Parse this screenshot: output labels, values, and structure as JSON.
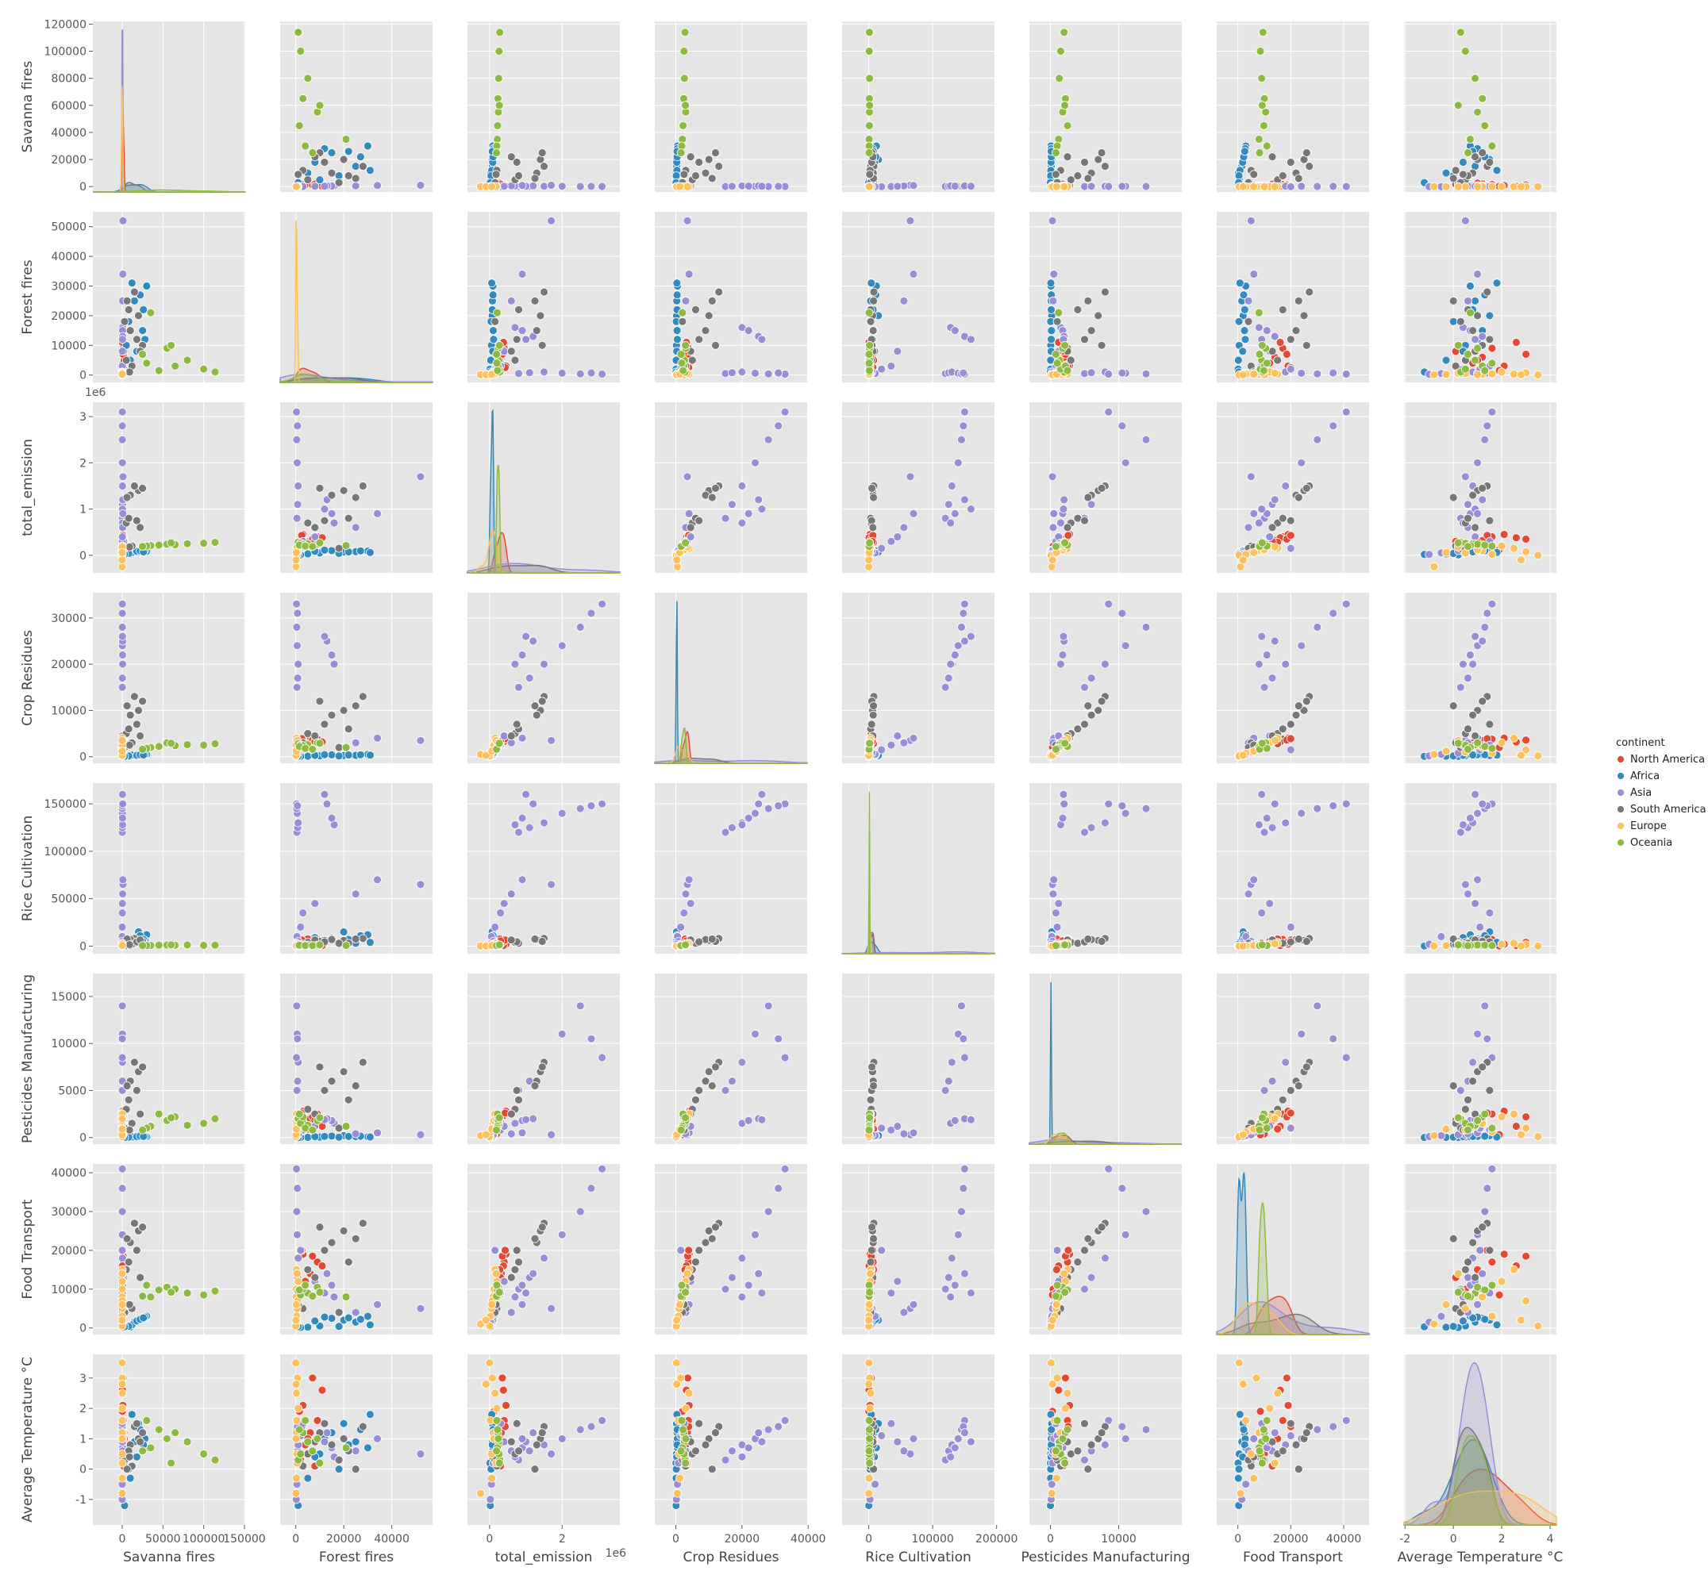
{
  "chart_data": {
    "type": "pairplot",
    "grid": true,
    "legend_title": "continent",
    "legend_loc": "right",
    "variables": [
      {
        "label": "Savanna fires",
        "xlim": [
          -36000,
          151000
        ],
        "xticks": [
          0,
          50000,
          100000,
          150000
        ],
        "ylim": [
          -4000,
          122000
        ],
        "yticks": [
          0,
          20000,
          40000,
          60000,
          80000,
          100000,
          120000
        ]
      },
      {
        "label": "Forest fires",
        "xlim": [
          -6500,
          57000
        ],
        "xticks": [
          0,
          20000,
          40000
        ],
        "ylim": [
          -2500,
          55000
        ],
        "yticks": [
          0,
          10000,
          20000,
          30000,
          40000,
          50000
        ]
      },
      {
        "label": "total_emission",
        "offset_text": "1e6",
        "xlim": [
          -610000,
          3590000
        ],
        "xticks": [
          0,
          {
            "value": 2000000,
            "label": "2"
          }
        ],
        "ylim": [
          -380000,
          3310000
        ],
        "yticks": [
          0,
          {
            "value": 1000000,
            "label": "1"
          },
          {
            "value": 2000000,
            "label": "2"
          },
          {
            "value": 3000000,
            "label": "3"
          }
        ]
      },
      {
        "label": "Crop Residues",
        "xlim": [
          -6350,
          39700
        ],
        "xticks": [
          0,
          20000,
          40000
        ],
        "ylim": [
          -1420,
          35460
        ],
        "yticks": [
          0,
          10000,
          20000,
          30000
        ]
      },
      {
        "label": "Rice Cultivation",
        "xlim": [
          -41700,
          196700
        ],
        "xticks": [
          0,
          100000,
          200000
        ],
        "ylim": [
          -8000,
          171900
        ],
        "yticks": [
          0,
          50000,
          100000,
          150000
        ]
      },
      {
        "label": "Pesticides Manufacturing",
        "xlim": [
          -3080,
          19230
        ],
        "xticks": [
          0,
          10000
        ],
        "ylim": [
          -700,
          17440
        ],
        "yticks": [
          0,
          5000,
          10000,
          15000
        ]
      },
      {
        "label": "Food Transport",
        "xlim": [
          -8000,
          49600
        ],
        "xticks": [
          0,
          20000,
          40000
        ],
        "ylim": [
          -1700,
          42270
        ],
        "yticks": [
          0,
          10000,
          20000,
          30000,
          40000
        ]
      },
      {
        "label": "Average Temperature °C",
        "xlim": [
          -2.04,
          4.26
        ],
        "xticks": [
          -2,
          0,
          2,
          4
        ],
        "ylim": [
          -1.84,
          3.78
        ],
        "yticks": [
          -1,
          0,
          1,
          2,
          3
        ]
      }
    ],
    "series": [
      {
        "name": "North America",
        "color": "#e24a33",
        "points": [
          [
            500,
            2000,
            150000,
            2500,
            3000,
            800,
            9000,
            0.3
          ],
          [
            1000,
            4000,
            250000,
            3000,
            5000,
            1500,
            12000,
            0.8
          ],
          [
            2000,
            6000,
            320000,
            3500,
            6000,
            2000,
            14000,
            1.2
          ],
          [
            1500,
            9000,
            400000,
            3800,
            7000,
            2500,
            17000,
            1.6
          ],
          [
            800,
            3000,
            450000,
            4000,
            2000,
            2800,
            19000,
            2.1
          ],
          [
            300,
            11000,
            380000,
            3200,
            500,
            1200,
            16000,
            2.6
          ],
          [
            2500,
            5000,
            280000,
            2800,
            7500,
            900,
            15000,
            1.0
          ],
          [
            100,
            1000,
            200000,
            2200,
            1000,
            400,
            10000,
            0.5
          ],
          [
            1200,
            7000,
            350000,
            3600,
            4000,
            2200,
            18500,
            3.0
          ],
          [
            600,
            2500,
            430000,
            3900,
            6500,
            2600,
            20000,
            1.4
          ],
          [
            200,
            1500,
            120000,
            2000,
            200,
            300,
            8500,
            1.9
          ],
          [
            1800,
            8000,
            300000,
            3300,
            5500,
            1800,
            13000,
            0.1
          ]
        ]
      },
      {
        "name": "Africa",
        "color": "#348abd",
        "points": [
          [
            5000,
            10000,
            50000,
            200,
            1000,
            50,
            500,
            0.5
          ],
          [
            15000,
            25000,
            80000,
            300,
            3000,
            100,
            1500,
            0.9
          ],
          [
            25000,
            15000,
            100000,
            400,
            8000,
            150,
            2500,
            1.2
          ],
          [
            30000,
            30000,
            90000,
            500,
            12000,
            80,
            3000,
            0.7
          ],
          [
            10000,
            5000,
            30000,
            100,
            500,
            20,
            200,
            -0.3
          ],
          [
            20000,
            20000,
            70000,
            250,
            15000,
            200,
            2000,
            1.5
          ],
          [
            2000,
            2000,
            10000,
            50,
            200,
            10,
            100,
            0.2
          ],
          [
            12000,
            31000,
            60000,
            350,
            4000,
            60,
            800,
            1.8
          ],
          [
            28000,
            12000,
            110000,
            450,
            6000,
            120,
            2800,
            1.0
          ],
          [
            8000,
            18000,
            40000,
            150,
            2000,
            30,
            400,
            0.0
          ],
          [
            18000,
            8000,
            85000,
            300,
            9000,
            90,
            1800,
            0.4
          ],
          [
            22000,
            27000,
            95000,
            420,
            11000,
            140,
            2200,
            1.3
          ],
          [
            3000,
            1000,
            20000,
            80,
            100,
            5,
            300,
            -1.2
          ],
          [
            26000,
            22000,
            75000,
            380,
            7000,
            110,
            2600,
            0.8
          ]
        ]
      },
      {
        "name": "Asia",
        "color": "#988ed5",
        "points": [
          [
            100,
            500,
            800000,
            15000,
            120000,
            5000,
            10000,
            0.3
          ],
          [
            200,
            800,
            1100000,
            17000,
            125000,
            6000,
            13000,
            0.6
          ],
          [
            300,
            1000,
            1500000,
            20000,
            130000,
            8000,
            18000,
            0.8
          ],
          [
            200,
            600,
            2000000,
            24000,
            140000,
            11000,
            24000,
            1.0
          ],
          [
            100,
            400,
            2500000,
            28000,
            145000,
            14000,
            30000,
            1.3
          ],
          [
            100,
            300,
            3100000,
            33000,
            150000,
            8500,
            41000,
            1.6
          ],
          [
            150,
            700,
            2800000,
            31000,
            148000,
            10500,
            36000,
            1.4
          ],
          [
            500,
            16000,
            700000,
            20000,
            128000,
            1500,
            8000,
            0.4
          ],
          [
            400,
            15000,
            900000,
            22000,
            135000,
            1800,
            11000,
            0.7
          ],
          [
            600,
            13000,
            1200000,
            25000,
            150000,
            2000,
            14000,
            1.2
          ],
          [
            300,
            12000,
            1000000,
            26000,
            160000,
            1900,
            9000,
            0.9
          ],
          [
            1000,
            52000,
            1700000,
            3500,
            65000,
            300,
            5000,
            0.5
          ],
          [
            800,
            34000,
            900000,
            4000,
            70000,
            500,
            6000,
            1.0
          ],
          [
            500,
            25000,
            600000,
            3000,
            55000,
            400,
            4000,
            0.6
          ],
          [
            0,
            2000,
            150000,
            1500,
            20000,
            1000,
            20000,
            1.1
          ],
          [
            0,
            500,
            50000,
            500,
            10000,
            200,
            3000,
            -0.5
          ],
          [
            100,
            3000,
            300000,
            2500,
            35000,
            800,
            9000,
            1.5
          ],
          [
            0,
            1000,
            100000,
            800,
            5000,
            300,
            5000,
            0.2
          ],
          [
            200,
            8000,
            400000,
            4500,
            45000,
            1200,
            12000,
            0.9
          ],
          [
            0,
            200,
            20000,
            200,
            2000,
            100,
            1500,
            -1.0
          ]
        ]
      },
      {
        "name": "South America",
        "color": "#777777",
        "points": [
          [
            20000,
            20000,
            1400000,
            10000,
            6000,
            7000,
            25000,
            1.0
          ],
          [
            15000,
            28000,
            1500000,
            13000,
            8000,
            8000,
            27000,
            1.4
          ],
          [
            10000,
            15000,
            1300000,
            9000,
            7000,
            6000,
            22000,
            0.8
          ],
          [
            25000,
            10000,
            1450000,
            12000,
            5000,
            7500,
            26000,
            1.2
          ],
          [
            5000,
            5000,
            700000,
            5000,
            4000,
            3000,
            15000,
            0.5
          ],
          [
            8000,
            22000,
            800000,
            6000,
            3000,
            4000,
            17000,
            0.6
          ],
          [
            12000,
            3000,
            200000,
            3000,
            2000,
            1500,
            5000,
            0.1
          ],
          [
            3000,
            18000,
            150000,
            2000,
            3000,
            1000,
            4000,
            0.3
          ],
          [
            18000,
            12000,
            750000,
            7000,
            4500,
            5000,
            20000,
            1.5
          ],
          [
            22000,
            8000,
            600000,
            4500,
            6500,
            2500,
            13000,
            0.9
          ],
          [
            6000,
            25000,
            1250000,
            11000,
            7500,
            5500,
            23000,
            0.0
          ],
          [
            9000,
            1000,
            180000,
            2500,
            1500,
            800,
            6000,
            0.4
          ]
        ]
      },
      {
        "name": "Europe",
        "color": "#fbc15e",
        "points": [
          [
            0,
            100,
            -250000,
            500,
            0,
            200,
            1000,
            -0.8
          ],
          [
            0,
            500,
            50000,
            1000,
            500,
            800,
            5000,
            0.5
          ],
          [
            0,
            200,
            100000,
            2000,
            1000,
            1500,
            8000,
            1.2
          ],
          [
            0,
            1000,
            200000,
            3000,
            2000,
            2200,
            12000,
            2.0
          ],
          [
            0,
            300,
            150000,
            4000,
            3000,
            2500,
            15000,
            2.5
          ],
          [
            0,
            50,
            0,
            200,
            100,
            100,
            500,
            3.5
          ],
          [
            0,
            800,
            80000,
            1500,
            1500,
            1000,
            7000,
            3.0
          ],
          [
            0,
            400,
            20000,
            800,
            200,
            600,
            3000,
            1.6
          ],
          [
            0,
            150,
            120000,
            2500,
            800,
            1800,
            10000,
            1.0
          ],
          [
            0,
            600,
            180000,
            3500,
            2500,
            2000,
            14000,
            0.2
          ],
          [
            0,
            100,
            -100000,
            300,
            0,
            300,
            2000,
            2.8
          ],
          [
            0,
            250,
            60000,
            1200,
            600,
            900,
            6000,
            -0.3
          ]
        ]
      },
      {
        "name": "Oceania",
        "color": "#8eba42",
        "points": [
          [
            114000,
            1000,
            280000,
            2800,
            1000,
            2000,
            9500,
            0.3
          ],
          [
            100000,
            2000,
            260000,
            2500,
            800,
            1500,
            8500,
            0.5
          ],
          [
            80000,
            5000,
            250000,
            2600,
            1200,
            1300,
            9000,
            0.9
          ],
          [
            65000,
            3000,
            230000,
            2400,
            900,
            2200,
            10000,
            1.2
          ],
          [
            55000,
            9000,
            240000,
            3000,
            1100,
            1800,
            10500,
            1.0
          ],
          [
            45000,
            1500,
            220000,
            2200,
            1000,
            2500,
            9800,
            1.3
          ],
          [
            35000,
            21000,
            210000,
            2000,
            700,
            1200,
            8000,
            0.7
          ],
          [
            30000,
            4000,
            200000,
            1800,
            600,
            1000,
            11000,
            1.6
          ],
          [
            25000,
            7000,
            190000,
            1600,
            500,
            800,
            8200,
            0.6
          ],
          [
            60000,
            10000,
            270000,
            2900,
            1300,
            2100,
            9200,
            0.2
          ]
        ]
      }
    ]
  }
}
